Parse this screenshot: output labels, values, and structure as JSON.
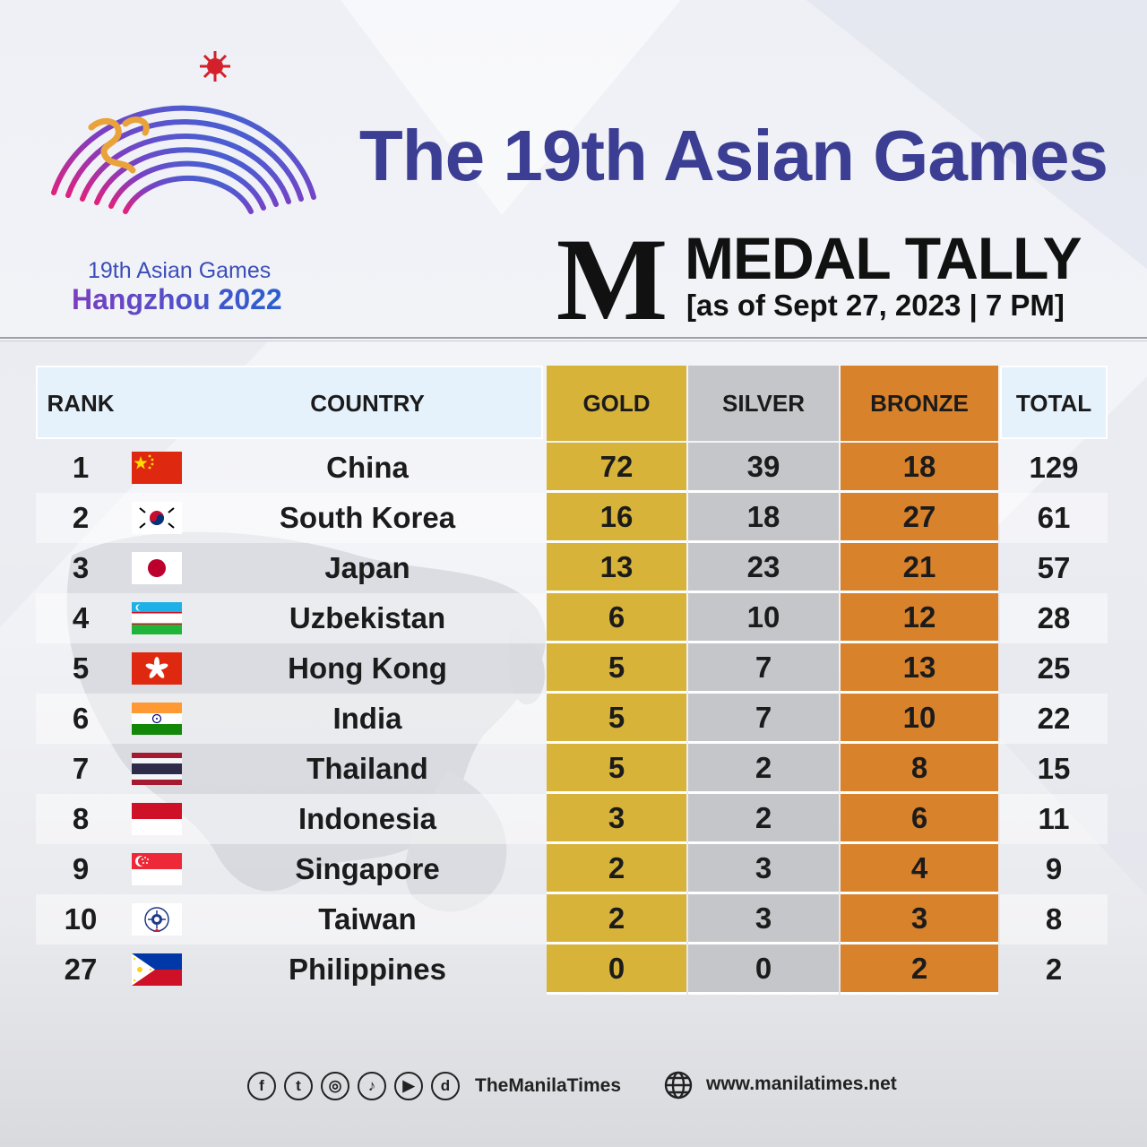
{
  "header": {
    "title": "The 19th Asian Games",
    "logo_line1": "19th Asian Games",
    "logo_line2": "Hangzhou 2022",
    "brand_letter": "M",
    "tally_title": "MEDAL TALLY",
    "tally_date": "[as of Sept 27, 2023 | 7 PM]"
  },
  "table": {
    "headers": {
      "rank": "RANK",
      "country": "COUNTRY",
      "gold": "GOLD",
      "silver": "SILVER",
      "bronze": "BRONZE",
      "total": "TOTAL"
    },
    "colors": {
      "gold": "#d8b33a",
      "silver": "#c4c6ca",
      "bronze": "#d8822c",
      "title": "#3b3e93"
    },
    "rows": [
      {
        "rank": "1",
        "country": "China",
        "flag": "china-flag-icon",
        "gold": "72",
        "silver": "39",
        "bronze": "18",
        "total": "129"
      },
      {
        "rank": "2",
        "country": "South Korea",
        "flag": "south-korea-flag-icon",
        "gold": "16",
        "silver": "18",
        "bronze": "27",
        "total": "61"
      },
      {
        "rank": "3",
        "country": "Japan",
        "flag": "japan-flag-icon",
        "gold": "13",
        "silver": "23",
        "bronze": "21",
        "total": "57"
      },
      {
        "rank": "4",
        "country": "Uzbekistan",
        "flag": "uzbekistan-flag-icon",
        "gold": "6",
        "silver": "10",
        "bronze": "12",
        "total": "28"
      },
      {
        "rank": "5",
        "country": "Hong Kong",
        "flag": "hong-kong-flag-icon",
        "gold": "5",
        "silver": "7",
        "bronze": "13",
        "total": "25"
      },
      {
        "rank": "6",
        "country": "India",
        "flag": "india-flag-icon",
        "gold": "5",
        "silver": "7",
        "bronze": "10",
        "total": "22"
      },
      {
        "rank": "7",
        "country": "Thailand",
        "flag": "thailand-flag-icon",
        "gold": "5",
        "silver": "2",
        "bronze": "8",
        "total": "15"
      },
      {
        "rank": "8",
        "country": "Indonesia",
        "flag": "indonesia-flag-icon",
        "gold": "3",
        "silver": "2",
        "bronze": "6",
        "total": "11"
      },
      {
        "rank": "9",
        "country": "Singapore",
        "flag": "singapore-flag-icon",
        "gold": "2",
        "silver": "3",
        "bronze": "4",
        "total": "9"
      },
      {
        "rank": "10",
        "country": "Taiwan",
        "flag": "taiwan-flag-icon",
        "gold": "2",
        "silver": "3",
        "bronze": "3",
        "total": "8"
      },
      {
        "rank": "27",
        "country": "Philippines",
        "flag": "philippines-flag-icon",
        "gold": "0",
        "silver": "0",
        "bronze": "2",
        "total": "2"
      }
    ]
  },
  "footer": {
    "social_icons": [
      "facebook-icon",
      "twitter-icon",
      "instagram-icon",
      "tiktok-icon",
      "youtube-icon",
      "dailymotion-icon"
    ],
    "social_glyphs": [
      "f",
      "t",
      "◎",
      "♪",
      "▶",
      "d"
    ],
    "handle": "TheManilaTimes",
    "website": "www.manilatimes.net"
  }
}
